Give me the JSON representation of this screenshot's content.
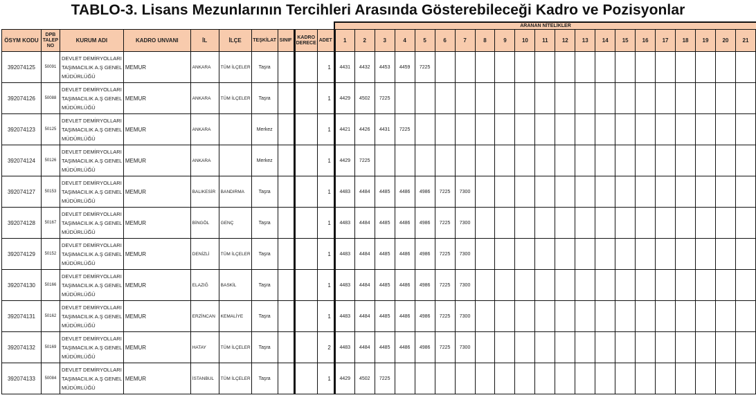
{
  "title": "TABLO-3. Lisans Mezunlarının Tercihleri Arasında Gösterebileceği Kadro ve Pozisyonlar",
  "group_header": "ARANAN NİTELİKLER",
  "header_color": "#f8cbad",
  "columns": {
    "osym_kodu": "ÖSYM KODU",
    "dpb_talep_no": "DPB TALEP NO",
    "kurum_adi": "KURUM ADI",
    "kadro_unvani": "KADRO UNVANI",
    "il": "İL",
    "ilce": "İLÇE",
    "teskilat": "TEŞKİLAT",
    "sinif": "SINIF",
    "kadro_derece": "KADRO DERECE",
    "adet": "ADET",
    "nitelik_numbers": [
      "1",
      "2",
      "3",
      "4",
      "5",
      "6",
      "7",
      "8",
      "9",
      "10",
      "11",
      "12",
      "13",
      "14",
      "15",
      "16",
      "17",
      "18",
      "19",
      "20",
      "21"
    ]
  },
  "rows": [
    {
      "osym": "392074125",
      "dpb": "50091",
      "kurum": "DEVLET DEMİRYOLLARI TAŞIMACILIK A.Ş GENEL MÜDÜRLÜĞÜ",
      "unvan": "MEMUR",
      "il": "ANKARA",
      "ilce": "TÜM İLÇELER",
      "teskilat": "Taşra",
      "sinif": "",
      "derece": "",
      "adet": "1",
      "nitelikler": [
        "4431",
        "4432",
        "4453",
        "4459",
        "7225"
      ]
    },
    {
      "osym": "392074126",
      "dpb": "50088",
      "kurum": "DEVLET DEMİRYOLLARI TAŞIMACILIK A.Ş GENEL MÜDÜRLÜĞÜ",
      "unvan": "MEMUR",
      "il": "ANKARA",
      "ilce": "TÜM İLÇELER",
      "teskilat": "Taşra",
      "sinif": "",
      "derece": "",
      "adet": "1",
      "nitelikler": [
        "4429",
        "4502",
        "7225"
      ]
    },
    {
      "osym": "392074123",
      "dpb": "50125",
      "kurum": "DEVLET DEMİRYOLLARI TAŞIMACILIK A.Ş GENEL MÜDÜRLÜĞÜ",
      "unvan": "MEMUR",
      "il": "ANKARA",
      "ilce": "",
      "teskilat": "Merkez",
      "sinif": "",
      "derece": "",
      "adet": "1",
      "nitelikler": [
        "4421",
        "4426",
        "4431",
        "7225"
      ]
    },
    {
      "osym": "392074124",
      "dpb": "50126",
      "kurum": "DEVLET DEMİRYOLLARI TAŞIMACILIK A.Ş GENEL MÜDÜRLÜĞÜ",
      "unvan": "MEMUR",
      "il": "ANKARA",
      "ilce": "",
      "teskilat": "Merkez",
      "sinif": "",
      "derece": "",
      "adet": "1",
      "nitelikler": [
        "4429",
        "7225"
      ]
    },
    {
      "osym": "392074127",
      "dpb": "50153",
      "kurum": "DEVLET DEMİRYOLLARI TAŞIMACILIK A.Ş GENEL MÜDÜRLÜĞÜ",
      "unvan": "MEMUR",
      "il": "BALIKESİR",
      "ilce": "BANDIRMA",
      "teskilat": "Taşra",
      "sinif": "",
      "derece": "",
      "adet": "1",
      "nitelikler": [
        "4483",
        "4484",
        "4485",
        "4486",
        "4986",
        "7225",
        "7300"
      ]
    },
    {
      "osym": "392074128",
      "dpb": "50167",
      "kurum": "DEVLET DEMİRYOLLARI TAŞIMACILIK A.Ş GENEL MÜDÜRLÜĞÜ",
      "unvan": "MEMUR",
      "il": "BİNGÖL",
      "ilce": "GENÇ",
      "teskilat": "Taşra",
      "sinif": "",
      "derece": "",
      "adet": "1",
      "nitelikler": [
        "4483",
        "4484",
        "4485",
        "4486",
        "4986",
        "7225",
        "7300"
      ]
    },
    {
      "osym": "392074129",
      "dpb": "50152",
      "kurum": "DEVLET DEMİRYOLLARI TAŞIMACILIK A.Ş GENEL MÜDÜRLÜĞÜ",
      "unvan": "MEMUR",
      "il": "DENİZLİ",
      "ilce": "TÜM İLÇELER",
      "teskilat": "Taşra",
      "sinif": "",
      "derece": "",
      "adet": "1",
      "nitelikler": [
        "4483",
        "4484",
        "4485",
        "4486",
        "4986",
        "7225",
        "7300"
      ]
    },
    {
      "osym": "392074130",
      "dpb": "50166",
      "kurum": "DEVLET DEMİRYOLLARI TAŞIMACILIK A.Ş GENEL MÜDÜRLÜĞÜ",
      "unvan": "MEMUR",
      "il": "ELAZIĞ",
      "ilce": "BASKİL",
      "teskilat": "Taşra",
      "sinif": "",
      "derece": "",
      "adet": "1",
      "nitelikler": [
        "4483",
        "4484",
        "4485",
        "4486",
        "4986",
        "7225",
        "7300"
      ]
    },
    {
      "osym": "392074131",
      "dpb": "50162",
      "kurum": "DEVLET DEMİRYOLLARI TAŞIMACILIK A.Ş GENEL MÜDÜRLÜĞÜ",
      "unvan": "MEMUR",
      "il": "ERZİNCAN",
      "ilce": "KEMALİYE",
      "teskilat": "Taşra",
      "sinif": "",
      "derece": "",
      "adet": "1",
      "nitelikler": [
        "4483",
        "4484",
        "4485",
        "4486",
        "4986",
        "7225",
        "7300"
      ]
    },
    {
      "osym": "392074132",
      "dpb": "50169",
      "kurum": "DEVLET DEMİRYOLLARI TAŞIMACILIK A.Ş GENEL MÜDÜRLÜĞÜ",
      "unvan": "MEMUR",
      "il": "HATAY",
      "ilce": "TÜM İLÇELER",
      "teskilat": "Taşra",
      "sinif": "",
      "derece": "",
      "adet": "2",
      "nitelikler": [
        "4483",
        "4484",
        "4485",
        "4486",
        "4986",
        "7225",
        "7300"
      ]
    },
    {
      "osym": "392074133",
      "dpb": "50084",
      "kurum": "DEVLET DEMİRYOLLARI TAŞIMACILIK A.Ş GENEL MÜDÜRLÜĞÜ",
      "unvan": "MEMUR",
      "il": "İSTANBUL",
      "ilce": "TÜM İLÇELER",
      "teskilat": "Taşra",
      "sinif": "",
      "derece": "",
      "adet": "1",
      "nitelikler": [
        "4429",
        "4502",
        "7225"
      ]
    }
  ]
}
